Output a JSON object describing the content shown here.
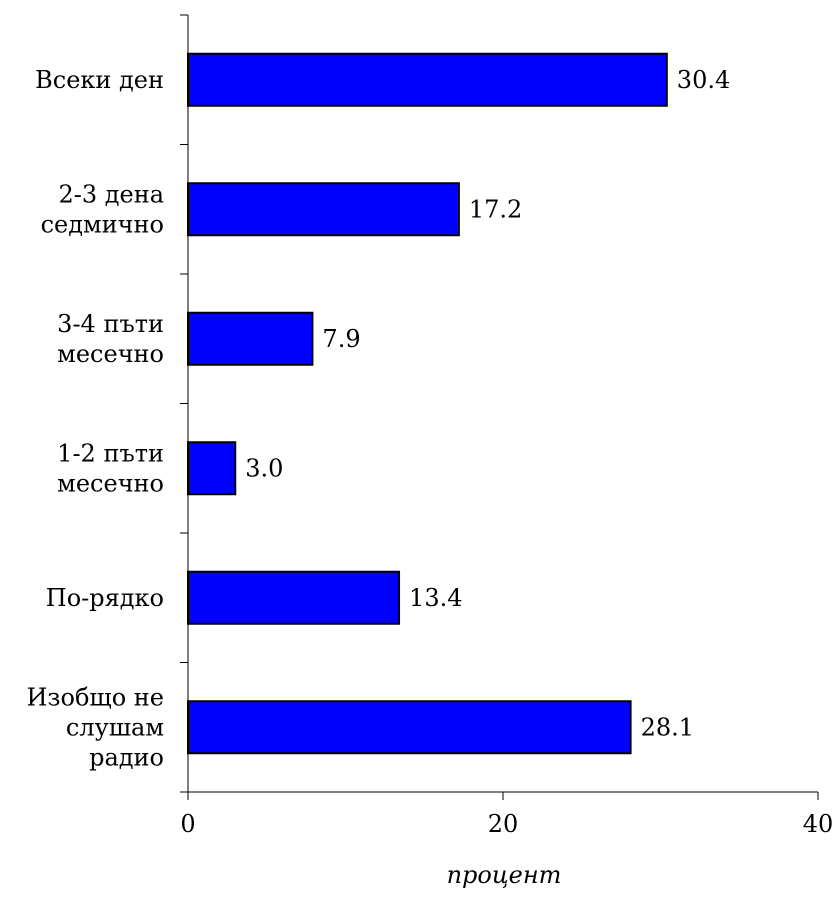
{
  "chart_data": {
    "type": "bar",
    "orientation": "horizontal",
    "categories": [
      [
        "Всеки ден"
      ],
      [
        "2-3 дена",
        "седмично"
      ],
      [
        "3-4 пъти",
        "месечно"
      ],
      [
        "1-2 пъти",
        "месечно"
      ],
      [
        "По-рядко"
      ],
      [
        "Изобщо не",
        "слушам",
        "радио"
      ]
    ],
    "values": [
      30.4,
      17.2,
      7.9,
      3.0,
      13.4,
      28.1
    ],
    "value_labels": [
      "30.4",
      "17.2",
      "7.9",
      "3.0",
      "13.4",
      "28.1"
    ],
    "xlabel": "процент",
    "xlim": [
      0,
      40
    ],
    "xticks": [
      0,
      20,
      40
    ],
    "xtick_labels": [
      "0",
      "20",
      "40"
    ],
    "bar_color": "#0000ff",
    "bar_edge_color": "#000000",
    "grid": false,
    "legend": false
  }
}
